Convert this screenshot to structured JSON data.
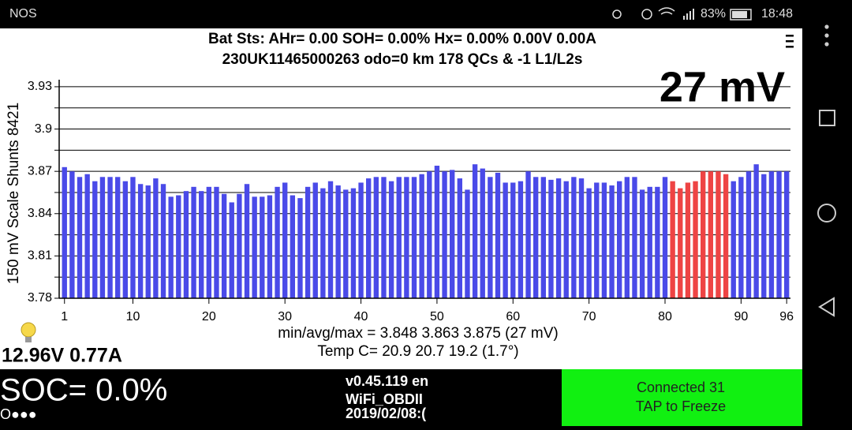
{
  "status_bar": {
    "carrier": "NOS",
    "battery": "83%",
    "time": "18:48"
  },
  "header": {
    "line1": "Bat Sts:  AHr= 0.00  SOH= 0.00%   Hx= 0.00%   0.00V 0.00A",
    "line2": "230UK11465000263 odo=0 km  178 QCs & -1 L1/L2s"
  },
  "chart_data": {
    "type": "bar",
    "big_label": "27 mV",
    "ylabel": "150 mV Scale  Shunts 8421",
    "x": [
      1,
      2,
      3,
      4,
      5,
      6,
      7,
      8,
      9,
      10,
      11,
      12,
      13,
      14,
      15,
      16,
      17,
      18,
      19,
      20,
      21,
      22,
      23,
      24,
      25,
      26,
      27,
      28,
      29,
      30,
      31,
      32,
      33,
      34,
      35,
      36,
      37,
      38,
      39,
      40,
      41,
      42,
      43,
      44,
      45,
      46,
      47,
      48,
      49,
      50,
      51,
      52,
      53,
      54,
      55,
      56,
      57,
      58,
      59,
      60,
      61,
      62,
      63,
      64,
      65,
      66,
      67,
      68,
      69,
      70,
      71,
      72,
      73,
      74,
      75,
      76,
      77,
      78,
      79,
      80,
      81,
      82,
      83,
      84,
      85,
      86,
      87,
      88,
      89,
      90,
      91,
      92,
      93,
      94,
      95,
      96
    ],
    "values": [
      3.873,
      3.87,
      3.866,
      3.868,
      3.863,
      3.866,
      3.866,
      3.866,
      3.863,
      3.866,
      3.861,
      3.86,
      3.865,
      3.861,
      3.852,
      3.853,
      3.856,
      3.859,
      3.856,
      3.859,
      3.859,
      3.854,
      3.848,
      3.854,
      3.861,
      3.852,
      3.852,
      3.853,
      3.859,
      3.862,
      3.853,
      3.851,
      3.859,
      3.862,
      3.858,
      3.863,
      3.86,
      3.857,
      3.858,
      3.862,
      3.865,
      3.866,
      3.866,
      3.863,
      3.866,
      3.866,
      3.866,
      3.868,
      3.87,
      3.874,
      3.87,
      3.871,
      3.865,
      3.857,
      3.875,
      3.872,
      3.866,
      3.869,
      3.862,
      3.862,
      3.863,
      3.87,
      3.866,
      3.866,
      3.864,
      3.865,
      3.863,
      3.866,
      3.865,
      3.858,
      3.862,
      3.862,
      3.86,
      3.863,
      3.866,
      3.866,
      3.857,
      3.859,
      3.859,
      3.866,
      3.863,
      3.858,
      3.862,
      3.863,
      3.87,
      3.87,
      3.87,
      3.868,
      3.863,
      3.866,
      3.87,
      3.875,
      3.868,
      3.87,
      3.87,
      3.87
    ],
    "colors": [
      "#4a4ae8",
      "#4a4ae8",
      "#4a4ae8",
      "#4a4ae8",
      "#4a4ae8",
      "#4a4ae8",
      "#4a4ae8",
      "#4a4ae8",
      "#4a4ae8",
      "#4a4ae8",
      "#4a4ae8",
      "#4a4ae8",
      "#4a4ae8",
      "#4a4ae8",
      "#4a4ae8",
      "#4a4ae8",
      "#4a4ae8",
      "#4a4ae8",
      "#4a4ae8",
      "#4a4ae8",
      "#4a4ae8",
      "#4a4ae8",
      "#4a4ae8",
      "#4a4ae8",
      "#4a4ae8",
      "#4a4ae8",
      "#4a4ae8",
      "#4a4ae8",
      "#4a4ae8",
      "#4a4ae8",
      "#4a4ae8",
      "#4a4ae8",
      "#4a4ae8",
      "#4a4ae8",
      "#4a4ae8",
      "#4a4ae8",
      "#4a4ae8",
      "#4a4ae8",
      "#4a4ae8",
      "#4a4ae8",
      "#4a4ae8",
      "#4a4ae8",
      "#4a4ae8",
      "#4a4ae8",
      "#4a4ae8",
      "#4a4ae8",
      "#4a4ae8",
      "#4a4ae8",
      "#4a4ae8",
      "#4a4ae8",
      "#4a4ae8",
      "#4a4ae8",
      "#4a4ae8",
      "#4a4ae8",
      "#4a4ae8",
      "#4a4ae8",
      "#4a4ae8",
      "#4a4ae8",
      "#4a4ae8",
      "#4a4ae8",
      "#4a4ae8",
      "#4a4ae8",
      "#4a4ae8",
      "#4a4ae8",
      "#4a4ae8",
      "#4a4ae8",
      "#4a4ae8",
      "#4a4ae8",
      "#4a4ae8",
      "#4a4ae8",
      "#4a4ae8",
      "#4a4ae8",
      "#4a4ae8",
      "#4a4ae8",
      "#4a4ae8",
      "#4a4ae8",
      "#4a4ae8",
      "#4a4ae8",
      "#4a4ae8",
      "#4a4ae8",
      "#ee4444",
      "#ee4444",
      "#ee4444",
      "#ee4444",
      "#ee4444",
      "#ee4444",
      "#ee4444",
      "#ee4444",
      "#4a4ae8",
      "#4a4ae8",
      "#4a4ae8",
      "#4a4ae8",
      "#4a4ae8",
      "#4a4ae8",
      "#4a4ae8",
      "#4a4ae8"
    ],
    "xlim": [
      0.3,
      96.5
    ],
    "xticks": [
      1,
      10,
      20,
      30,
      40,
      50,
      60,
      70,
      80,
      90,
      96
    ],
    "ylim": [
      3.78,
      3.935
    ],
    "yticks": [
      3.78,
      3.81,
      3.84,
      3.87,
      3.9,
      3.93
    ],
    "yminor": [
      3.795,
      3.825,
      3.855,
      3.885,
      3.915
    ],
    "grid": true
  },
  "readouts": {
    "stats": "min/avg/max = 3.848 3.863 3.875  (27 mV)",
    "temp": "Temp C= 20.9  20.7  19.2  (1.7°)",
    "power": "12.96V 0.77A",
    "soc": "SOC= 0.0%",
    "dots": "O●●●"
  },
  "footer": {
    "version": "v0.45.119 en",
    "adapter": "WiFi_OBDII",
    "date": "2019/02/08:(",
    "status": "Connected 31",
    "action": "TAP to Freeze"
  }
}
